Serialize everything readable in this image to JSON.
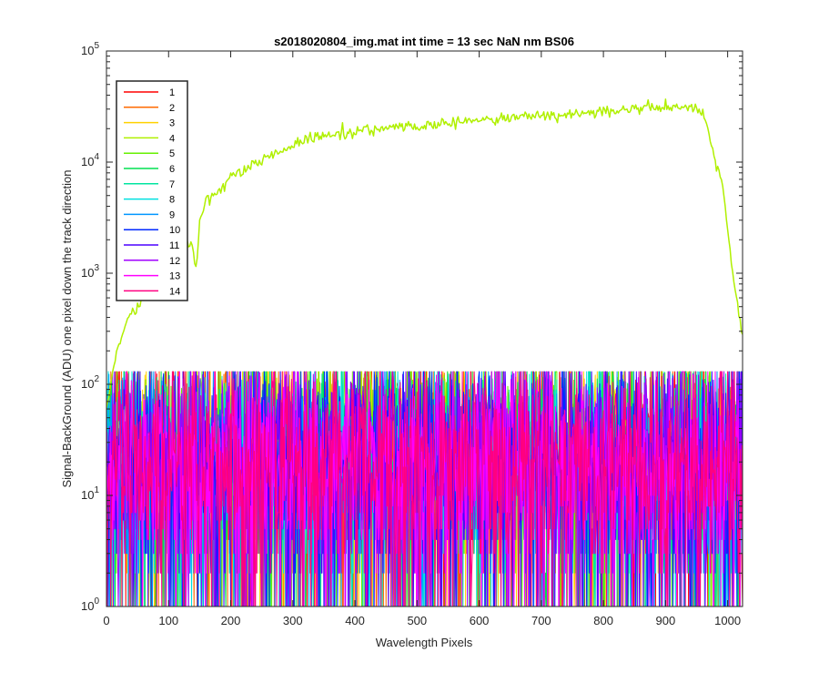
{
  "chart_data": {
    "type": "line",
    "title": "s2018020804_img.mat int time = 13 sec  NaN nm BS06",
    "xlabel": "Wavelength Pixels",
    "ylabel": "Signal-BackGround (ADU) one pixel down the track direction",
    "xlim": [
      0,
      1024
    ],
    "ylim": [
      1,
      100000
    ],
    "yscale": "log",
    "grid": false,
    "legend_placement": "top-left",
    "x_ticks": [
      {
        "value": 0,
        "label": "0"
      },
      {
        "value": 100,
        "label": "100"
      },
      {
        "value": 200,
        "label": "200"
      },
      {
        "value": 300,
        "label": "300"
      },
      {
        "value": 400,
        "label": "400"
      },
      {
        "value": 500,
        "label": "500"
      },
      {
        "value": 600,
        "label": "600"
      },
      {
        "value": 700,
        "label": "700"
      },
      {
        "value": 800,
        "label": "800"
      },
      {
        "value": 900,
        "label": "900"
      },
      {
        "value": 1000,
        "label": "1000"
      }
    ],
    "y_ticks": [
      {
        "value": 1,
        "base": "10",
        "exp": "0"
      },
      {
        "value": 10,
        "base": "10",
        "exp": "1"
      },
      {
        "value": 100,
        "base": "10",
        "exp": "2"
      },
      {
        "value": 1000,
        "base": "10",
        "exp": "3"
      },
      {
        "value": 10000,
        "base": "10",
        "exp": "4"
      },
      {
        "value": 100000,
        "base": "10",
        "exp": "5"
      }
    ],
    "series": [
      {
        "name": "1",
        "color": "#ff0000",
        "kind": "noise",
        "level": [
          20,
          20
        ],
        "spread": 1.1
      },
      {
        "name": "2",
        "color": "#ff6a00",
        "kind": "noise",
        "level": [
          20,
          22
        ],
        "spread": 1.1
      },
      {
        "name": "3",
        "color": "#ffd200",
        "kind": "noise",
        "level": [
          20,
          28
        ],
        "spread": 1.1
      },
      {
        "name": "4",
        "color": "#b0f000",
        "kind": "signal",
        "x": [
          0,
          5,
          15,
          30,
          50,
          80,
          110,
          135,
          145,
          150,
          160,
          180,
          200,
          230,
          260,
          300,
          340,
          380,
          420,
          460,
          500,
          540,
          580,
          620,
          660,
          700,
          740,
          780,
          820,
          860,
          900,
          930,
          950,
          960,
          970,
          980,
          990,
          1000,
          1010,
          1020,
          1024
        ],
        "y": [
          60,
          90,
          180,
          350,
          500,
          900,
          1400,
          2000,
          1100,
          3000,
          4500,
          5500,
          7000,
          9000,
          11000,
          14000,
          17000,
          18500,
          19500,
          20000,
          21000,
          22000,
          23500,
          24000,
          25000,
          26000,
          27000,
          28000,
          29000,
          30000,
          31500,
          32000,
          31000,
          28000,
          18000,
          10000,
          7000,
          2500,
          800,
          350,
          280
        ]
      },
      {
        "name": "5",
        "color": "#66f000",
        "kind": "noise",
        "level": [
          20,
          30
        ],
        "spread": 1.1
      },
      {
        "name": "6",
        "color": "#00e050",
        "kind": "noise",
        "level": [
          18,
          22
        ],
        "spread": 1.1
      },
      {
        "name": "7",
        "color": "#00e6a0",
        "kind": "noise",
        "level": [
          16,
          18
        ],
        "spread": 1.1
      },
      {
        "name": "8",
        "color": "#00e0e0",
        "kind": "noise",
        "level": [
          16,
          18
        ],
        "spread": 1.1
      },
      {
        "name": "9",
        "color": "#0096ff",
        "kind": "noise",
        "level": [
          16,
          18
        ],
        "spread": 1.1
      },
      {
        "name": "10",
        "color": "#0028ff",
        "kind": "noise",
        "level": [
          18,
          20
        ],
        "spread": 1.1
      },
      {
        "name": "11",
        "color": "#4b00ff",
        "kind": "noise",
        "level": [
          18,
          20
        ],
        "spread": 1.1
      },
      {
        "name": "12",
        "color": "#a000ff",
        "kind": "noise",
        "level": [
          18,
          20
        ],
        "spread": 1.1
      },
      {
        "name": "13",
        "color": "#ff00ff",
        "kind": "noise",
        "level": [
          18,
          20
        ],
        "spread": 1.1
      },
      {
        "name": "14",
        "color": "#ff0080",
        "kind": "noise",
        "level": [
          18,
          20
        ],
        "spread": 1.1
      }
    ]
  }
}
